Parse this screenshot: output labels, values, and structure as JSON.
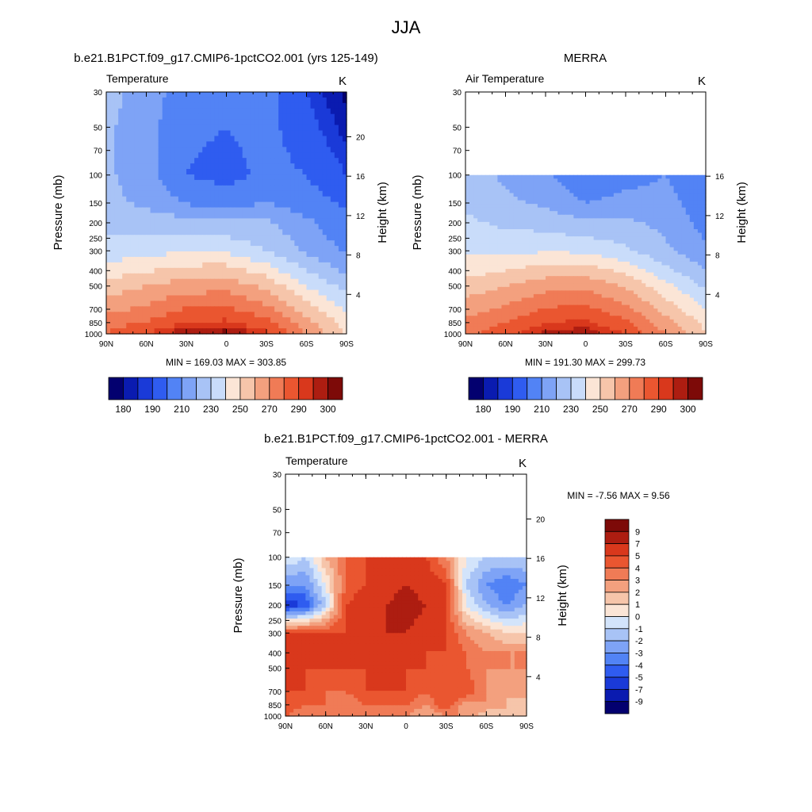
{
  "figure": {
    "title": "JJA",
    "panels": {
      "model": {
        "heading": "b.e21.B1PCT.f09_g17.CMIP6-1pctCO2.001 (yrs 125-149)",
        "left_label": "Temperature",
        "right_label": "K",
        "ylabel": "Pressure (mb)",
        "y2label": "Height (km)",
        "stats": "MIN = 169.03  MAX = 303.85"
      },
      "obs": {
        "heading": "MERRA",
        "left_label": "Air Temperature",
        "right_label": "K",
        "ylabel": "Pressure (mb)",
        "y2label": "Height (km)",
        "stats": "MIN = 191.30  MAX = 299.73"
      },
      "diff": {
        "heading": "b.e21.B1PCT.f09_g17.CMIP6-1pctCO2.001 - MERRA",
        "left_label": "Temperature",
        "right_label": "K",
        "ylabel": "Pressure (mb)",
        "y2label": "Height (km)",
        "stats": "MIN =  -7.56  MAX =   9.56"
      }
    }
  },
  "chart_data": [
    {
      "id": "model",
      "type": "heatmap",
      "title": "b.e21.B1PCT.f09_g17.CMIP6-1pctCO2.001 (yrs 125-149)",
      "xlabel": "",
      "ylabel": "Pressure (mb)",
      "y2label": "Height (km)",
      "x_ticks": [
        "90N",
        "60N",
        "30N",
        "0",
        "30S",
        "60S",
        "90S"
      ],
      "y_ticks": [
        30,
        50,
        70,
        100,
        150,
        200,
        250,
        300,
        400,
        500,
        700,
        850,
        1000
      ],
      "y2_ticks": [
        4,
        8,
        12,
        16,
        20
      ],
      "y_scale": "log",
      "xlim": [
        90,
        -90
      ],
      "ylim": [
        1000,
        30
      ],
      "units": "K",
      "min": 169.03,
      "max": 303.85,
      "colorbar_levels": [
        180,
        185,
        190,
        200,
        210,
        220,
        230,
        240,
        250,
        260,
        270,
        280,
        290,
        295,
        300
      ],
      "colorbar_labels": [
        "180",
        "190",
        "210",
        "230",
        "250",
        "270",
        "290",
        "300"
      ],
      "lat": [
        90,
        60,
        30,
        0,
        -30,
        -60,
        -90
      ],
      "levels": [
        30,
        50,
        70,
        100,
        150,
        200,
        300,
        400,
        500,
        700,
        850,
        1000
      ],
      "values": [
        [
          225,
          214,
          206,
          207,
          204,
          190,
          178
        ],
        [
          222,
          213,
          203,
          200,
          203,
          194,
          182
        ],
        [
          222,
          213,
          201,
          198,
          203,
          197,
          186
        ],
        [
          222,
          214,
          200,
          196,
          203,
          200,
          190
        ],
        [
          223,
          218,
          209,
          206,
          210,
          205,
          198
        ],
        [
          228,
          226,
          224,
          222,
          222,
          212,
          203
        ],
        [
          234,
          236,
          239,
          238,
          230,
          218,
          208
        ],
        [
          245,
          249,
          254,
          255,
          245,
          230,
          218
        ],
        [
          254,
          260,
          265,
          266,
          258,
          240,
          226
        ],
        [
          267,
          272,
          281,
          282,
          273,
          255,
          238
        ],
        [
          275,
          281,
          291,
          292,
          283,
          264,
          245
        ],
        [
          281,
          290,
          300,
          303,
          292,
          270,
          250
        ]
      ]
    },
    {
      "id": "obs",
      "type": "heatmap",
      "title": "MERRA",
      "xlabel": "",
      "ylabel": "Pressure (mb)",
      "y2label": "Height (km)",
      "x_ticks": [
        "90N",
        "60N",
        "30N",
        "0",
        "30S",
        "60S",
        "90S"
      ],
      "y_ticks": [
        30,
        50,
        70,
        100,
        150,
        200,
        250,
        300,
        400,
        500,
        700,
        850,
        1000
      ],
      "y2_ticks": [
        4,
        8,
        12,
        16
      ],
      "y_scale": "log",
      "xlim": [
        90,
        -90
      ],
      "ylim": [
        1000,
        30
      ],
      "units": "K",
      "min": 191.3,
      "max": 299.73,
      "colorbar_levels": [
        180,
        185,
        190,
        200,
        210,
        220,
        230,
        240,
        250,
        260,
        270,
        280,
        290,
        295,
        300
      ],
      "colorbar_labels": [
        "180",
        "190",
        "210",
        "230",
        "250",
        "270",
        "290",
        "300"
      ],
      "lat": [
        90,
        60,
        30,
        0,
        -30,
        -60,
        -90
      ],
      "levels": [
        100,
        150,
        200,
        300,
        400,
        500,
        700,
        850,
        1000
      ],
      "values": [
        [
          226,
          218,
          212,
          200,
          205,
          210,
          200
        ],
        [
          228,
          222,
          218,
          210,
          214,
          214,
          204
        ],
        [
          232,
          228,
          226,
          222,
          222,
          217,
          206
        ],
        [
          238,
          237,
          239,
          238,
          232,
          222,
          212
        ],
        [
          246,
          250,
          255,
          256,
          247,
          233,
          220
        ],
        [
          254,
          260,
          266,
          267,
          259,
          243,
          228
        ],
        [
          266,
          272,
          281,
          283,
          273,
          256,
          240
        ],
        [
          272,
          280,
          290,
          292,
          282,
          264,
          247
        ],
        [
          277,
          287,
          297,
          299,
          290,
          270,
          250
        ]
      ]
    },
    {
      "id": "diff",
      "type": "heatmap",
      "title": "b.e21.B1PCT.f09_g17.CMIP6-1pctCO2.001 - MERRA",
      "xlabel": "",
      "ylabel": "Pressure (mb)",
      "y2label": "Height (km)",
      "x_ticks": [
        "90N",
        "60N",
        "30N",
        "0",
        "30S",
        "60S",
        "90S"
      ],
      "y_ticks": [
        30,
        50,
        70,
        100,
        150,
        200,
        250,
        300,
        400,
        500,
        700,
        850,
        1000
      ],
      "y2_ticks": [
        4,
        8,
        12,
        16,
        20
      ],
      "y_scale": "log",
      "xlim": [
        90,
        -90
      ],
      "ylim": [
        1000,
        30
      ],
      "units": "K",
      "min": -7.56,
      "max": 9.56,
      "colorbar_levels": [
        -9,
        -7,
        -5,
        -4,
        -3,
        -2,
        -1,
        0,
        1,
        2,
        3,
        4,
        5,
        7,
        9
      ],
      "colorbar_labels": [
        "9",
        "7",
        "5",
        "4",
        "3",
        "2",
        "1",
        "0",
        "-1",
        "-2",
        "-3",
        "-4",
        "-5",
        "-7",
        "-9"
      ],
      "lat": [
        90,
        75,
        60,
        45,
        30,
        15,
        0,
        -15,
        -30,
        -45,
        -60,
        -75,
        -90
      ],
      "levels": [
        100,
        150,
        200,
        300,
        400,
        500,
        700,
        850,
        1000
      ],
      "values": [
        [
          0,
          -1,
          2,
          4,
          5,
          5,
          5,
          5,
          3,
          0,
          -1,
          -1,
          -1
        ],
        [
          -3,
          -3,
          0,
          4,
          5,
          6,
          7,
          6,
          5,
          -1,
          -3,
          -4,
          -3
        ],
        [
          -6,
          -5,
          -1,
          5,
          6,
          7,
          8,
          7,
          5,
          0,
          -2,
          -3,
          -2
        ],
        [
          5,
          5,
          5,
          5,
          6,
          7,
          7,
          6,
          5,
          3,
          2,
          1,
          1
        ],
        [
          6,
          5,
          5,
          5,
          5,
          5,
          5,
          5,
          5,
          4,
          3,
          3,
          3
        ],
        [
          6,
          5,
          5,
          5,
          5,
          5,
          5,
          5,
          4,
          4,
          3,
          3,
          3
        ],
        [
          5,
          5,
          4,
          4,
          5,
          5,
          5,
          4,
          5,
          5,
          3,
          2,
          3
        ],
        [
          5,
          4,
          4,
          3,
          4,
          4,
          4,
          3,
          5,
          2,
          3,
          2,
          1
        ],
        [
          4,
          3,
          3,
          3,
          3,
          3,
          3,
          2,
          3,
          3,
          1,
          2,
          2
        ]
      ]
    }
  ]
}
